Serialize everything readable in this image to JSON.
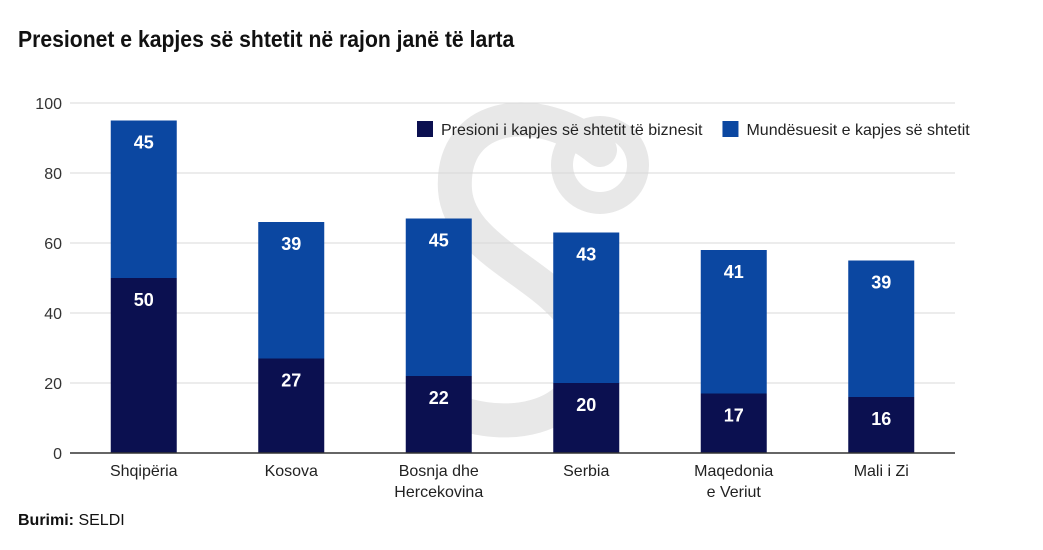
{
  "chart_data": {
    "type": "bar",
    "stacked": true,
    "title": "Presionet e kapjes së shtetit në rajon janë të larta",
    "xlabel": "",
    "ylabel": "",
    "ylim": [
      0,
      100
    ],
    "yticks": [
      0,
      20,
      40,
      60,
      80,
      100
    ],
    "grid": true,
    "legend_position": "top-right",
    "categories": [
      [
        "Shqipëria"
      ],
      [
        "Kosova"
      ],
      [
        "Bosnja dhe",
        "Hercekovina"
      ],
      [
        "Serbia"
      ],
      [
        "Maqedonia",
        "e Veriut"
      ],
      [
        "Mali i Zi"
      ]
    ],
    "series": [
      {
        "name": "Presioni i kapjes së shtetit të biznesit",
        "color": "#0b1050",
        "values": [
          50,
          27,
          22,
          20,
          17,
          16
        ]
      },
      {
        "name": "Mundësuesit e kapjes së shtetit",
        "color": "#0b47a1",
        "values": [
          45,
          39,
          45,
          43,
          41,
          39
        ]
      }
    ]
  },
  "source_label": "Burimi:",
  "source_value": "SELDI"
}
